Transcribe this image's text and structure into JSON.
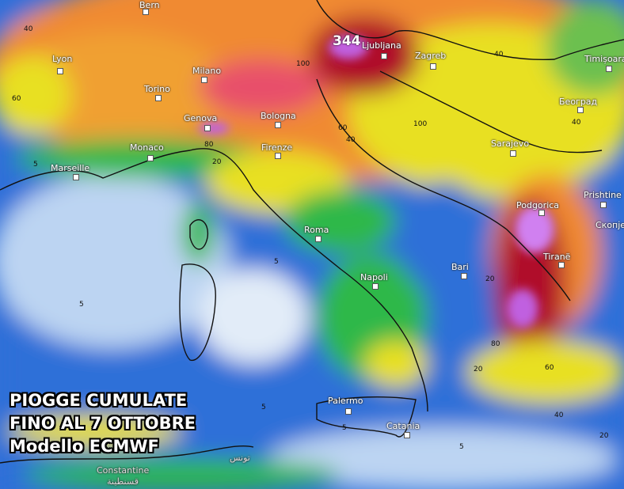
{
  "title": {
    "line1": "PIOGGE CUMULATE",
    "line2": "FINO AL 7 OTTOBRE",
    "line3": "Modello ECMWF"
  },
  "max_value_label": "344",
  "cities": {
    "bern": "Bern",
    "lyon": "Lyon",
    "milano": "Milano",
    "torino": "Torino",
    "genova": "Genova",
    "monaco": "Monaco",
    "marseille": "Marseille",
    "bologna": "Bologna",
    "firenze": "Firenze",
    "roma": "Roma",
    "napoli": "Napoli",
    "bari": "Bari",
    "palermo": "Palermo",
    "catania": "Catania",
    "ljubljana": "Ljubljana",
    "zagreb": "Zagreb",
    "sarajevo": "Sarajevo",
    "podgorica": "Podgorica",
    "tirane": "Tiranë",
    "prishtine": "Prishtine",
    "beograd": "Београд",
    "timisoara": "Timișoara",
    "skopje": "Скопје",
    "constantine": "Constantine",
    "constantine_ar": "قسنطينة",
    "tunis_ar": "تونس"
  },
  "contour_labels": [
    "40",
    "60",
    "80",
    "100",
    "20",
    "5",
    "40",
    "60",
    "100",
    "40",
    "40",
    "20",
    "5",
    "5",
    "5",
    "20",
    "60",
    "80",
    "40",
    "20",
    "5",
    "5"
  ],
  "legend_colors": {
    "5": "#3d7be0",
    "20": "#2fb84a",
    "40": "#e8e020",
    "60": "#f08a30",
    "80": "#e8506a",
    "100": "#b0102a",
    "200": "#c060e0"
  }
}
